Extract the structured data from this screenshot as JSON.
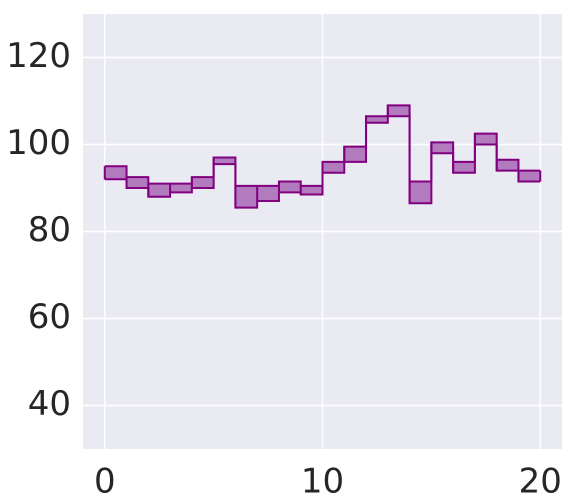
{
  "chart_data": {
    "type": "area",
    "style": "step-fill-between",
    "x": [
      0,
      1,
      2,
      3,
      4,
      5,
      6,
      7,
      8,
      9,
      10,
      11,
      12,
      13,
      14,
      15,
      16,
      17,
      18,
      19,
      20
    ],
    "series": [
      {
        "upper": [
          95.0,
          92.5,
          91.0,
          91.0,
          92.5,
          97.0,
          90.5,
          90.5,
          91.5,
          90.5,
          96.0,
          99.5,
          106.5,
          109.0,
          91.5,
          100.5,
          96.0,
          102.5,
          96.5,
          94.0,
          94.0
        ],
        "lower": [
          92.0,
          90.0,
          88.0,
          89.0,
          90.0,
          95.5,
          85.5,
          87.0,
          89.0,
          88.5,
          93.5,
          96.0,
          105.0,
          106.5,
          86.5,
          98.0,
          93.5,
          100.0,
          94.0,
          91.5,
          91.5
        ]
      }
    ],
    "xlim": [
      -1,
      21
    ],
    "ylim": [
      30,
      130
    ],
    "xticks": [
      0,
      10,
      20
    ],
    "yticks": [
      40,
      60,
      80,
      100,
      120
    ],
    "xtick_labels": [
      "0",
      "10",
      "20"
    ],
    "ytick_labels": [
      "40",
      "60",
      "80",
      "100",
      "120"
    ],
    "title": "",
    "xlabel": "",
    "ylabel": "",
    "grid": true,
    "colors": {
      "background": "#eaeaf2",
      "grid": "#ffffff",
      "fill": "#b27bbd",
      "edge": "#800080",
      "text": "#262626"
    }
  }
}
